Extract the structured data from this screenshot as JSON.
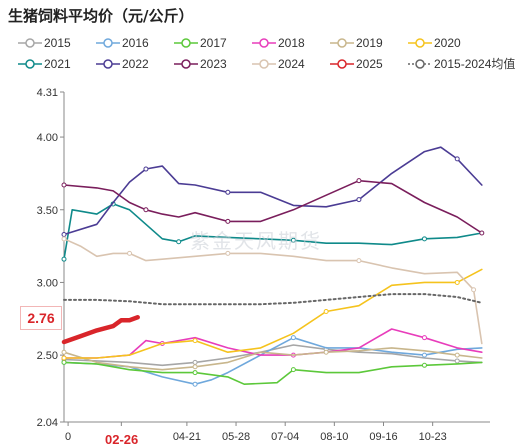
{
  "title": "生猪饲料平均价（元/公斤）",
  "watermark": "紫金天风期货",
  "current": {
    "label": "2.76",
    "date_label": "02-26",
    "color": "#d9252a"
  },
  "chart_data": {
    "type": "line",
    "title": "生猪饲料平均价（元/公斤）",
    "xlabel": "",
    "ylabel": "",
    "ylim": [
      2.04,
      4.31
    ],
    "yticks": [
      2.04,
      2.5,
      3.0,
      3.5,
      4.0,
      4.31
    ],
    "x_ticks": [
      "0",
      "02-26",
      "04-21",
      "05-28",
      "07-04",
      "08-10",
      "09-16",
      "10-23"
    ],
    "x_tick_weeks": [
      0.5,
      7,
      15,
      21,
      27,
      33,
      39,
      45
    ],
    "x_range_weeks": [
      0,
      52
    ],
    "grid": false,
    "legend_position": "top",
    "series": [
      {
        "name": "2015",
        "color": "#a6a6a6",
        "x": [
          0,
          4,
          8,
          12,
          16,
          20,
          24,
          28,
          32,
          36,
          40,
          44,
          48,
          51
        ],
        "values": [
          2.47,
          2.46,
          2.45,
          2.43,
          2.45,
          2.48,
          2.52,
          2.57,
          2.54,
          2.52,
          2.51,
          2.48,
          2.46,
          2.45
        ]
      },
      {
        "name": "2016",
        "color": "#6fa8dc",
        "x": [
          0,
          4,
          8,
          12,
          16,
          18,
          20,
          24,
          28,
          32,
          36,
          40,
          44,
          48,
          51
        ],
        "values": [
          2.45,
          2.44,
          2.42,
          2.35,
          2.3,
          2.33,
          2.38,
          2.5,
          2.62,
          2.55,
          2.55,
          2.52,
          2.5,
          2.54,
          2.55
        ]
      },
      {
        "name": "2017",
        "color": "#5cc83a",
        "x": [
          0,
          4,
          8,
          12,
          16,
          20,
          22,
          26,
          28,
          32,
          36,
          40,
          44,
          48,
          51
        ],
        "values": [
          2.45,
          2.44,
          2.4,
          2.38,
          2.38,
          2.35,
          2.3,
          2.31,
          2.4,
          2.38,
          2.38,
          2.42,
          2.43,
          2.44,
          2.45
        ]
      },
      {
        "name": "2018",
        "color": "#e83dbb",
        "x": [
          0,
          4,
          8,
          10,
          12,
          16,
          20,
          24,
          28,
          32,
          36,
          40,
          44,
          48,
          51
        ],
        "values": [
          2.48,
          2.48,
          2.5,
          2.6,
          2.58,
          2.62,
          2.55,
          2.5,
          2.5,
          2.52,
          2.55,
          2.68,
          2.62,
          2.55,
          2.52
        ]
      },
      {
        "name": "2019",
        "color": "#c8b68c",
        "x": [
          0,
          4,
          8,
          12,
          16,
          20,
          24,
          28,
          32,
          36,
          40,
          44,
          48,
          51
        ],
        "values": [
          2.52,
          2.45,
          2.42,
          2.4,
          2.42,
          2.45,
          2.52,
          2.5,
          2.52,
          2.53,
          2.55,
          2.53,
          2.5,
          2.48
        ]
      },
      {
        "name": "2020",
        "color": "#f5c31d",
        "x": [
          0,
          4,
          8,
          12,
          16,
          20,
          24,
          28,
          32,
          36,
          40,
          44,
          48,
          51
        ],
        "values": [
          2.48,
          2.48,
          2.5,
          2.58,
          2.6,
          2.52,
          2.55,
          2.65,
          2.8,
          2.84,
          2.98,
          3.0,
          3.0,
          3.09
        ]
      },
      {
        "name": "2021",
        "color": "#0f8a8a",
        "x": [
          0,
          1,
          2,
          4,
          6,
          8,
          10,
          12,
          14,
          16,
          20,
          24,
          28,
          32,
          36,
          40,
          44,
          48,
          51
        ],
        "values": [
          3.16,
          3.5,
          3.49,
          3.47,
          3.54,
          3.5,
          3.4,
          3.3,
          3.28,
          3.32,
          3.31,
          3.3,
          3.29,
          3.27,
          3.27,
          3.26,
          3.3,
          3.31,
          3.34
        ]
      },
      {
        "name": "2022",
        "color": "#4b3c94",
        "x": [
          0,
          4,
          6,
          8,
          10,
          12,
          14,
          16,
          20,
          24,
          28,
          32,
          36,
          40,
          44,
          46,
          48,
          51
        ],
        "values": [
          3.33,
          3.4,
          3.55,
          3.69,
          3.78,
          3.8,
          3.68,
          3.67,
          3.62,
          3.62,
          3.53,
          3.52,
          3.57,
          3.75,
          3.9,
          3.93,
          3.85,
          3.67
        ]
      },
      {
        "name": "2023",
        "color": "#7a1e5c",
        "x": [
          0,
          4,
          6,
          8,
          10,
          12,
          14,
          16,
          20,
          24,
          28,
          32,
          36,
          40,
          44,
          48,
          51
        ],
        "values": [
          3.67,
          3.65,
          3.63,
          3.55,
          3.5,
          3.47,
          3.45,
          3.48,
          3.42,
          3.42,
          3.5,
          3.6,
          3.7,
          3.68,
          3.55,
          3.45,
          3.34
        ]
      },
      {
        "name": "2024",
        "color": "#d9c4b0",
        "x": [
          0,
          2,
          4,
          6,
          8,
          10,
          12,
          16,
          20,
          24,
          28,
          32,
          36,
          40,
          44,
          48,
          50,
          51
        ],
        "values": [
          3.3,
          3.25,
          3.18,
          3.2,
          3.2,
          3.15,
          3.16,
          3.18,
          3.2,
          3.2,
          3.18,
          3.15,
          3.15,
          3.1,
          3.06,
          3.07,
          2.95,
          2.58
        ]
      },
      {
        "name": "2025",
        "color": "#d9252a",
        "x": [
          0,
          2,
          4,
          6,
          7,
          8,
          9
        ],
        "values": [
          2.59,
          2.63,
          2.67,
          2.7,
          2.74,
          2.74,
          2.76
        ]
      },
      {
        "name": "2015-2024均值",
        "color": "#666666",
        "dashed": true,
        "x": [
          0,
          4,
          8,
          12,
          16,
          20,
          24,
          28,
          32,
          36,
          40,
          44,
          48,
          51
        ],
        "values": [
          2.88,
          2.88,
          2.87,
          2.85,
          2.85,
          2.85,
          2.85,
          2.86,
          2.88,
          2.9,
          2.92,
          2.92,
          2.9,
          2.86
        ]
      }
    ]
  }
}
